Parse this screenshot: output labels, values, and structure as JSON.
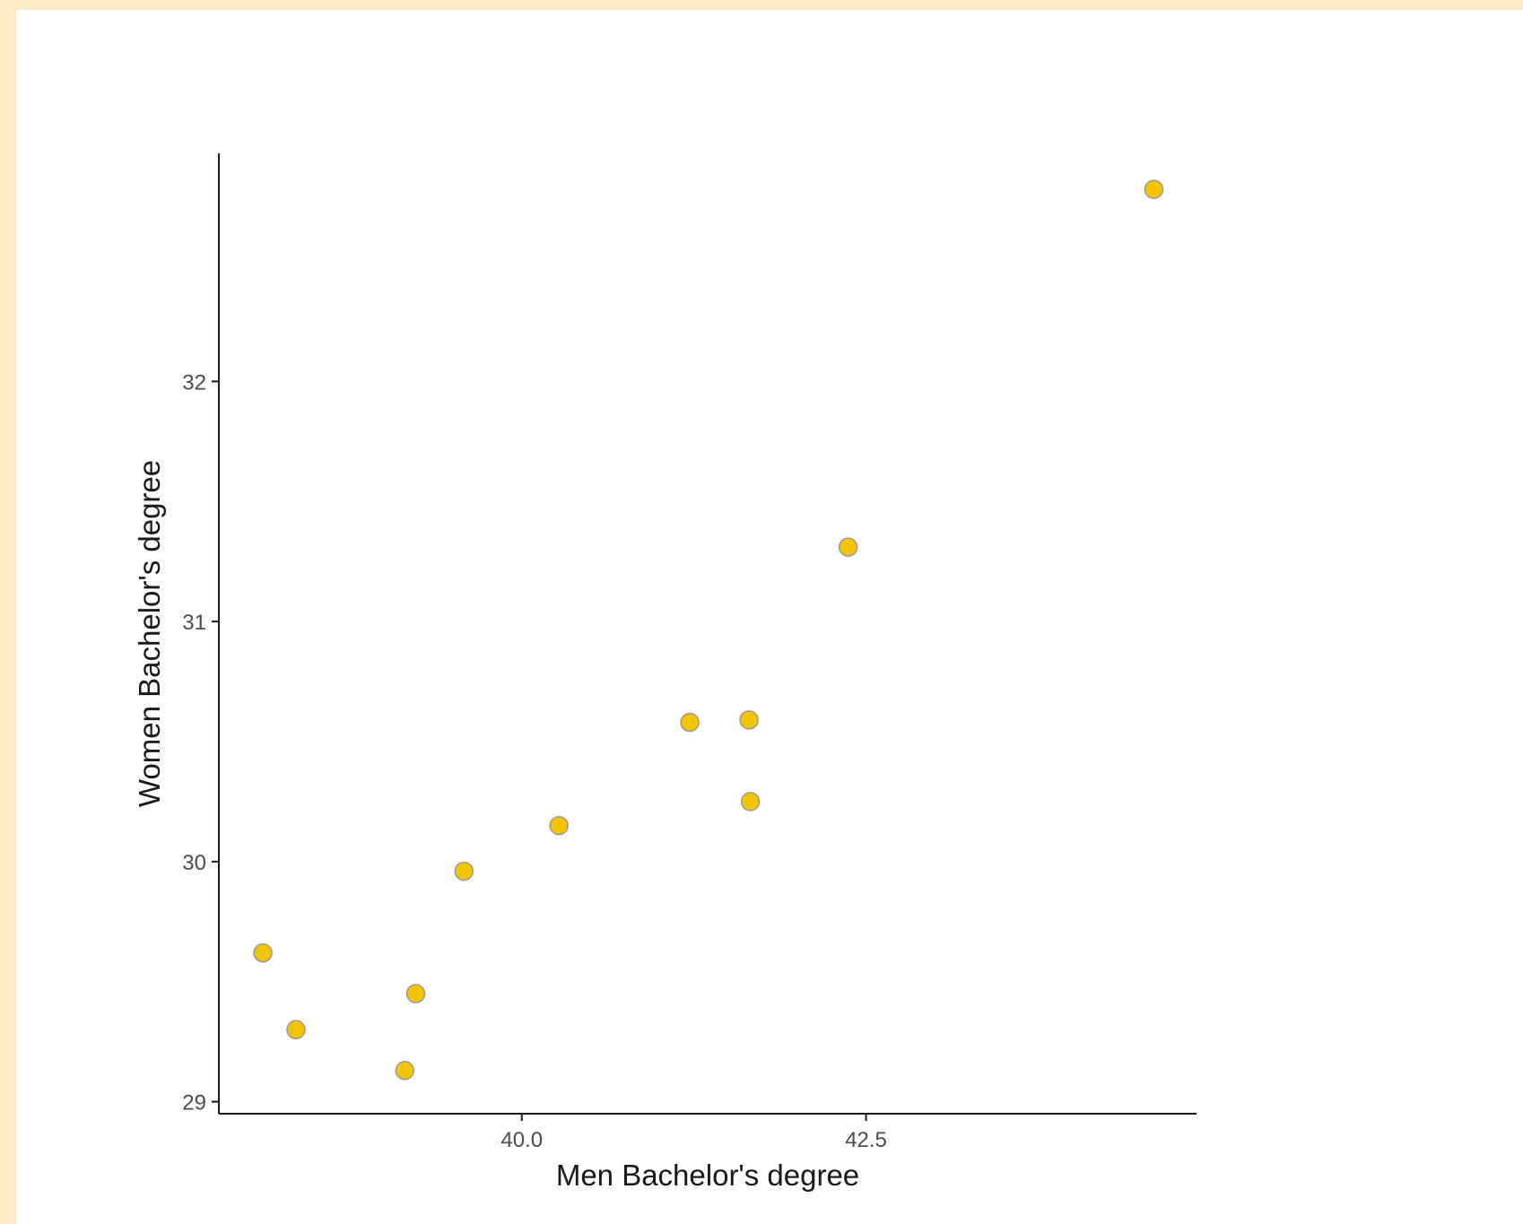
{
  "chart_data": {
    "type": "scatter",
    "title": "",
    "xlabel": "Men Bachelor's degree",
    "ylabel": "Women Bachelor's degree",
    "xlim": [
      37.8,
      44.9
    ],
    "ylim": [
      28.95,
      32.95
    ],
    "x_ticks": [
      40.0,
      42.5
    ],
    "x_tick_labels": [
      "40.0",
      "42.5"
    ],
    "y_ticks": [
      29,
      30,
      31,
      32
    ],
    "y_tick_labels": [
      "29",
      "30",
      "31",
      "32"
    ],
    "grid": false,
    "legend": "none",
    "point_fill": "#f5c400",
    "point_stroke": "#9a9a9a",
    "axis_color": "#1a1a1a",
    "points": [
      {
        "x": 38.12,
        "y": 29.62
      },
      {
        "x": 38.36,
        "y": 29.3
      },
      {
        "x": 39.15,
        "y": 29.13
      },
      {
        "x": 39.23,
        "y": 29.45
      },
      {
        "x": 39.58,
        "y": 29.96
      },
      {
        "x": 40.27,
        "y": 30.15
      },
      {
        "x": 41.22,
        "y": 30.58
      },
      {
        "x": 41.65,
        "y": 30.59
      },
      {
        "x": 41.66,
        "y": 30.25
      },
      {
        "x": 42.37,
        "y": 31.31
      },
      {
        "x": 44.59,
        "y": 32.8
      }
    ]
  }
}
